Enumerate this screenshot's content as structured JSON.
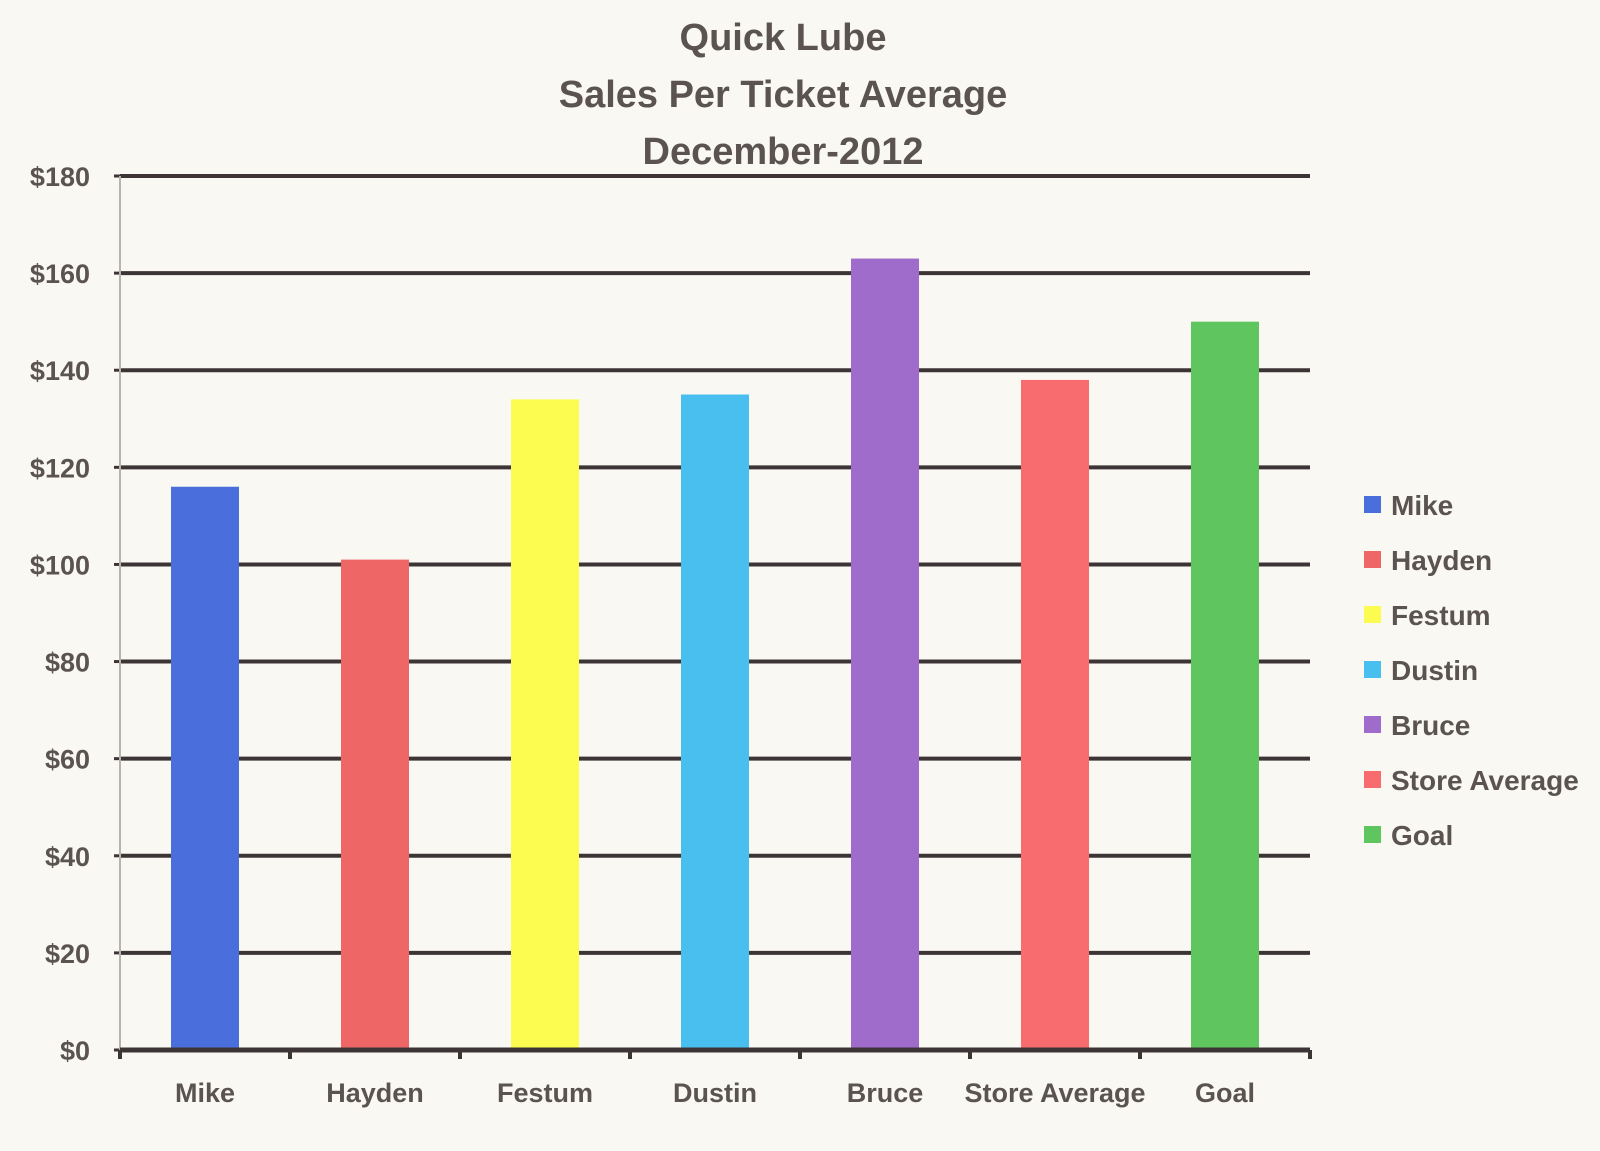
{
  "chart_data": {
    "type": "bar",
    "title": [
      "Quick Lube",
      "Sales Per Ticket Average",
      "December-2012"
    ],
    "xlabel": "",
    "ylabel": "",
    "categories": [
      "Mike",
      "Hayden",
      "Festum",
      "Dustin",
      "Bruce",
      "Store Average",
      "Goal"
    ],
    "values": [
      116,
      101,
      134,
      135,
      163,
      138,
      150
    ],
    "colors": [
      "#4a6fdc",
      "#ee6666",
      "#fbfb50",
      "#49bff0",
      "#a06ccc",
      "#f86b6f",
      "#5fc55f"
    ],
    "ylim": [
      0,
      180
    ],
    "yticks": [
      0,
      20,
      40,
      60,
      80,
      100,
      120,
      140,
      160,
      180
    ],
    "ytick_labels": [
      "$0",
      "$20",
      "$40",
      "$60",
      "$80",
      "$100",
      "$120",
      "$140",
      "$160",
      "$180"
    ],
    "grid": true,
    "grid_color": "#3d3535",
    "legend": {
      "position": "right",
      "entries": [
        "Mike",
        "Hayden",
        "Festum",
        "Dustin",
        "Bruce",
        "Store Average",
        "Goal"
      ]
    }
  }
}
